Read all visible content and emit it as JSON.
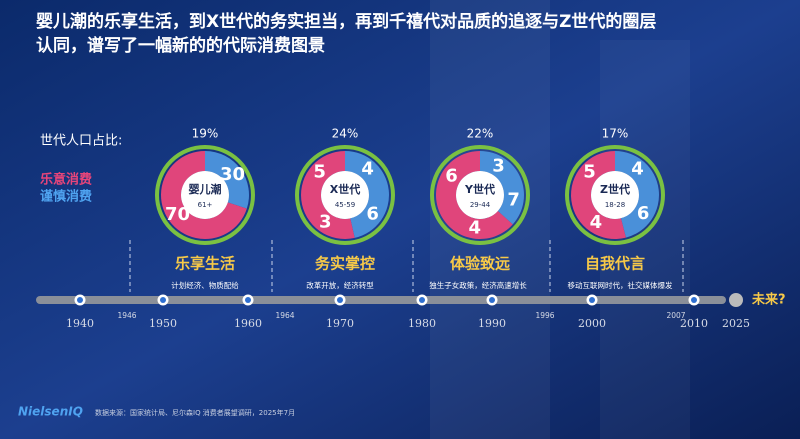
{
  "title": "婴儿潮的乐享生活，到X世代的务实担当，再到千禧代对品质的追逐与Z世代的圈层认同，谱写了一幅新的的代际消费图景",
  "legend": {
    "label": "世代人口占比:",
    "items": [
      "乐意消费",
      "谨慎消费"
    ]
  },
  "generations": [
    {
      "share": "19%",
      "name": "婴儿潮",
      "age": "61+",
      "willing": [
        "70"
      ],
      "cautious": [
        "30"
      ],
      "theme": "乐享生活"
    },
    {
      "share": "24%",
      "name": "X世代",
      "age": "45-59",
      "willing": [
        "5",
        "3"
      ],
      "cautious": [
        "4",
        "6"
      ],
      "theme": "务实掌控"
    },
    {
      "share": "22%",
      "name": "Y世代",
      "age": "29-44",
      "willing": [
        "6",
        "4"
      ],
      "cautious": [
        "3",
        "7"
      ],
      "theme": "体验致远"
    },
    {
      "share": "17%",
      "name": "Z世代",
      "age": "18-28",
      "willing": [
        "5",
        "4"
      ],
      "cautious": [
        "4",
        "6"
      ],
      "theme": "自我代言"
    }
  ],
  "timeline": {
    "notes": [
      "计划经济、物质配给",
      "改革开放，经济转型",
      "独生子女政策，经济高速增长",
      "移动互联网时代，社交媒体爆发"
    ],
    "years": [
      "1940",
      "1950",
      "1960",
      "1970",
      "1980",
      "1990",
      "2000",
      "2010",
      "2025"
    ],
    "boundaries": [
      "1946",
      "1964",
      "1996",
      "2007"
    ],
    "future": "未来?"
  },
  "footer": {
    "source": "数据来源：国家统计局、尼尔森IQ 消费者展望调研，2025年7月",
    "logo": "NielsenIQ"
  }
}
